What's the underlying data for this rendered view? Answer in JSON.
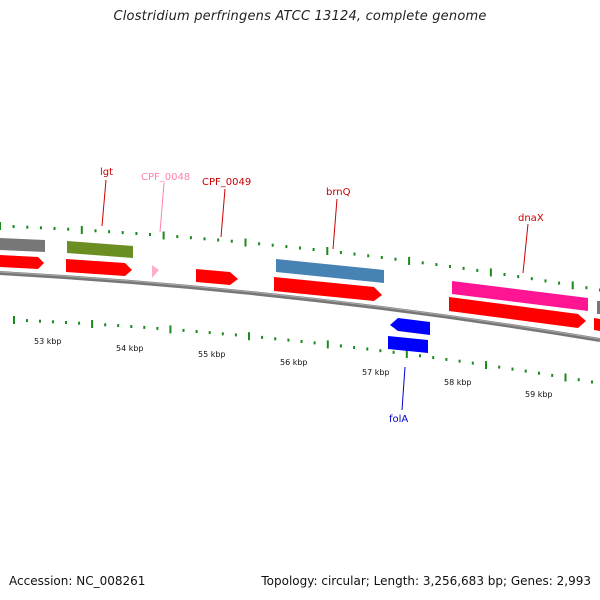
{
  "title": "Clostridium perfringens ATCC 13124, complete genome",
  "footer": {
    "accession_label": "Accession: NC_008261",
    "summary": "Topology: circular; Length: 3,256,683 bp; Genes: 2,993"
  },
  "colors": {
    "backbone": "#777777",
    "tick": "#1a8a1a",
    "cds": "#ff0000",
    "gene_grey": "#777777",
    "gene_olive": "#6b8e23",
    "gene_pink": "#ffaec9",
    "gene_blue_steel": "#4682b4",
    "gene_magenta": "#ff1493",
    "gene_blue": "#0000ff",
    "label_red": "#cc0000",
    "label_pink": "#ff80b0",
    "label_blue": "#0000cc"
  },
  "scale": {
    "unit": "kbp",
    "tick_labels": [
      "53 kbp",
      "54 kbp",
      "55 kbp",
      "56 kbp",
      "57 kbp",
      "58 kbp",
      "59 kbp"
    ]
  },
  "features": {
    "labels": [
      {
        "name": "lgt",
        "color": "label_red"
      },
      {
        "name": "CPF_0048",
        "color": "label_pink"
      },
      {
        "name": "CPF_0049",
        "color": "label_red"
      },
      {
        "name": "brnQ",
        "color": "label_red"
      },
      {
        "name": "dnaX",
        "color": "label_red"
      },
      {
        "name": "folA",
        "color": "label_blue"
      }
    ]
  }
}
